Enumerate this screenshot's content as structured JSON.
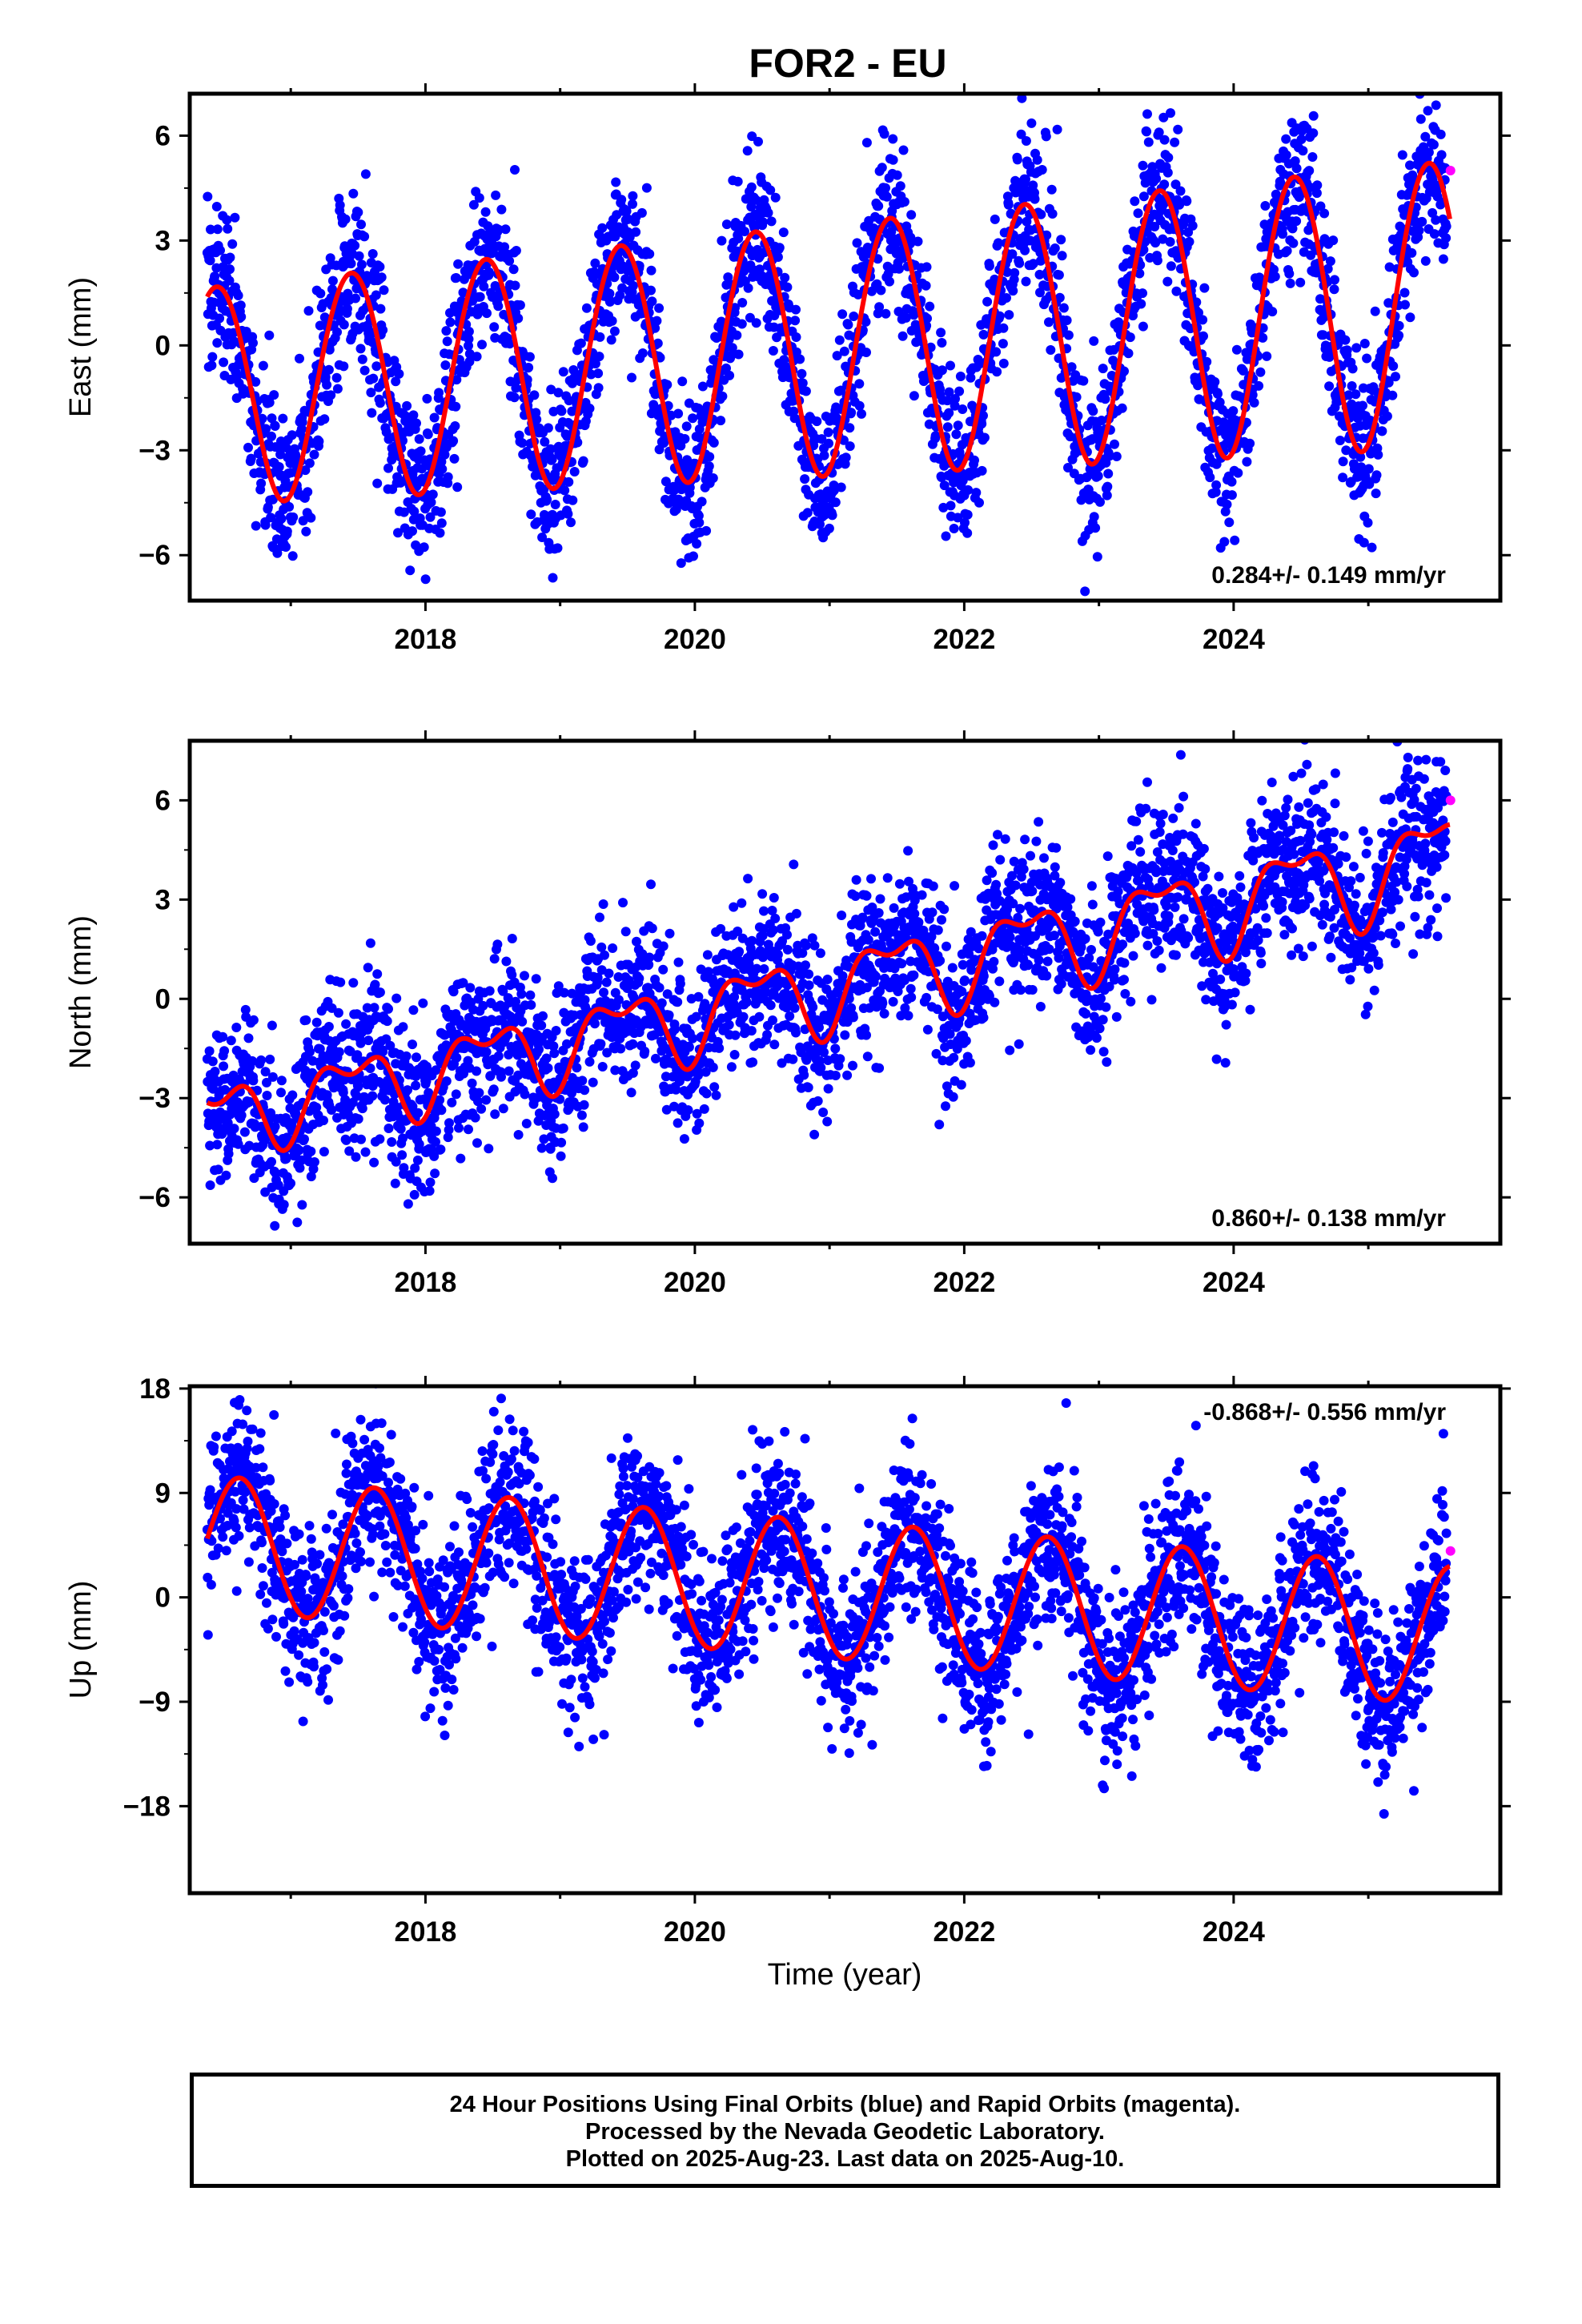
{
  "title": "FOR2 - EU",
  "xlabel": "Time (year)",
  "footer": {
    "line1": "24 Hour Positions Using Final Orbits (blue) and Rapid Orbits (magenta).",
    "line2": "Processed by the Nevada Geodetic Laboratory.",
    "line3": "Plotted on 2025-Aug-23. Last data on 2025-Aug-10."
  },
  "colors": {
    "final_orbits": "#0000ff",
    "rapid_orbits": "#ff00ff",
    "model_fit": "#ff0000",
    "frame": "#000000"
  },
  "chart_data": [
    {
      "type": "scatter",
      "ylabel": "East (mm)",
      "xlim": [
        2016.25,
        2025.98
      ],
      "ylim": [
        -7.3,
        7.2
      ],
      "yticks": [
        -6,
        -3,
        0,
        3,
        6
      ],
      "xticks": [
        2018,
        2020,
        2022,
        2024
      ],
      "grid": false,
      "annotation": "0.284+/- 0.149 mm/yr",
      "annotation_placement": "bottom-right",
      "model": {
        "offset": -1.35,
        "trend": 0.284,
        "annual_amp": [
          3.1,
          4.1
        ],
        "annual_peak": 0.45,
        "semiannual_amp": 0.1,
        "semiannual_peak": 0.2
      },
      "scatter_sigma": 1.15,
      "final_orbits_range": [
        2016.38,
        2025.58
      ],
      "rapid_orbits": [
        {
          "x": 2025.61,
          "y": 5.0
        }
      ],
      "fit_range": [
        2016.38,
        2025.61
      ]
    },
    {
      "type": "scatter",
      "ylabel": "North (mm)",
      "xlim": [
        2016.25,
        2025.98
      ],
      "ylim": [
        -7.4,
        7.8
      ],
      "yticks": [
        -6,
        -3,
        0,
        3,
        6
      ],
      "xticks": [
        2018,
        2020,
        2022,
        2024
      ],
      "grid": false,
      "annotation": "0.860+/- 0.138 mm/yr",
      "annotation_placement": "bottom-right",
      "model": {
        "offset": -3.6,
        "trend": 0.86,
        "annual_amp": [
          0.9,
          1.3
        ],
        "annual_peak": 0.45,
        "semiannual_amp": 0.55,
        "semiannual_peak": 0.2
      },
      "scatter_sigma": 1.2,
      "final_orbits_range": [
        2016.38,
        2025.58
      ],
      "rapid_orbits": [
        {
          "x": 2025.61,
          "y": 6.0
        }
      ],
      "fit_range": [
        2016.38,
        2025.61
      ]
    },
    {
      "type": "scatter",
      "ylabel": "Up (mm)",
      "xlim": [
        2016.25,
        2025.98
      ],
      "ylim": [
        -25.5,
        18.2
      ],
      "yticks": [
        -18,
        -9,
        0,
        9,
        18
      ],
      "xticks": [
        2018,
        2020,
        2022,
        2024
      ],
      "grid": false,
      "annotation": "-0.868+/- 0.556 mm/yr",
      "annotation_placement": "top-right",
      "model": {
        "offset": 4.7,
        "trend": -0.868,
        "annual_amp": [
          5.8,
          6.0
        ],
        "annual_peak": 0.62,
        "semiannual_amp": 0.0,
        "semiannual_peak": 0.2
      },
      "scatter_sigma": 3.6,
      "final_orbits_range": [
        2016.38,
        2025.58
      ],
      "rapid_orbits": [
        {
          "x": 2025.61,
          "y": 4.0
        }
      ],
      "fit_range": [
        2016.38,
        2025.61
      ]
    }
  ]
}
